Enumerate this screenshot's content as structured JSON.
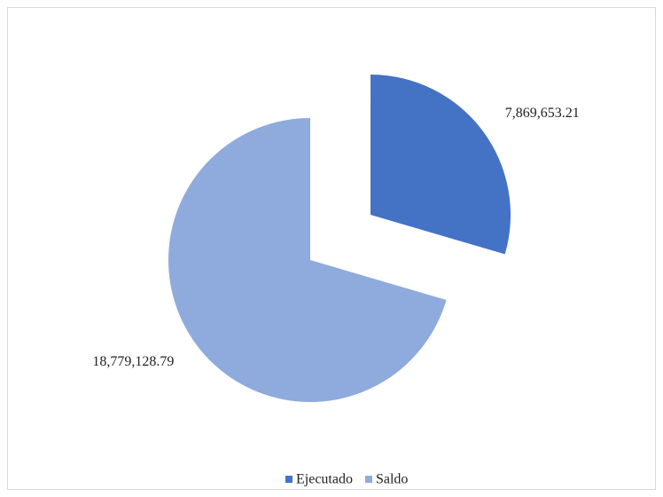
{
  "chart_data": {
    "type": "pie",
    "categories": [
      "Ejecutado",
      "Saldo"
    ],
    "values": [
      7869653.21,
      18779128.79
    ],
    "value_labels": [
      "7,869,653.21",
      "18,779,128.79"
    ],
    "colors": [
      "#4472c4",
      "#8faadc"
    ],
    "exploded": [
      true,
      false
    ],
    "legend": "bottom"
  }
}
